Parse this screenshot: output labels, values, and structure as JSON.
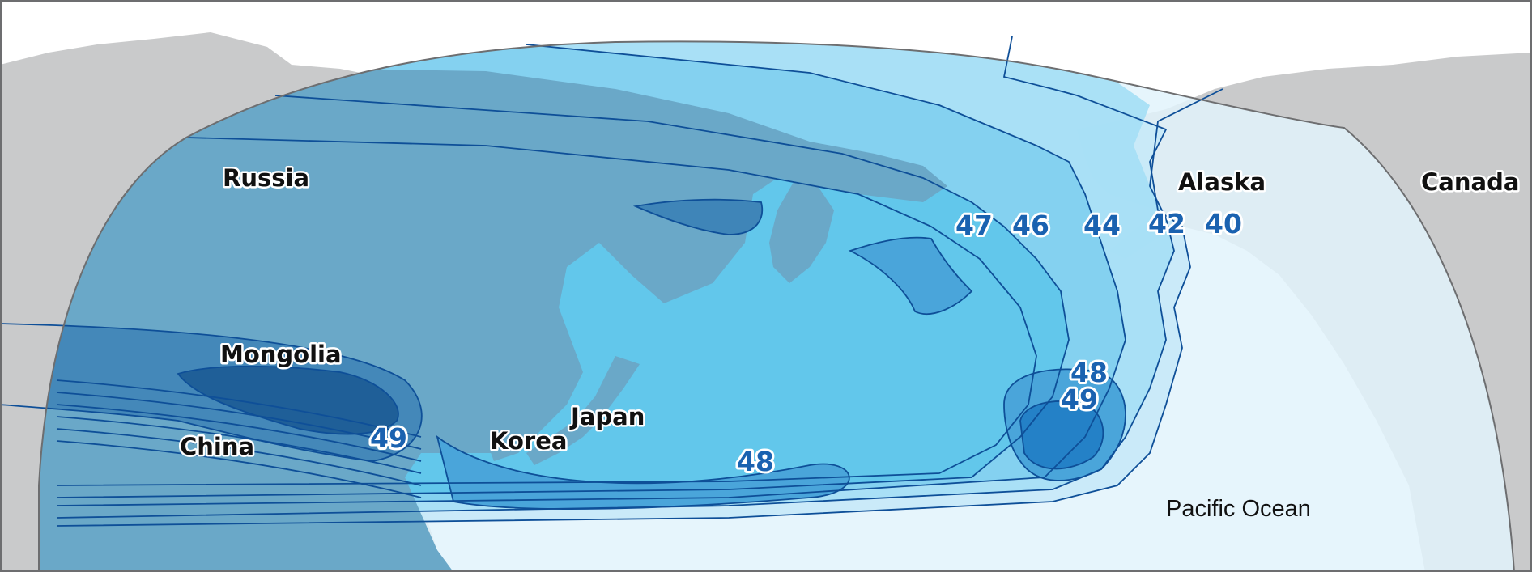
{
  "labels": {
    "russia": "Russia",
    "mongolia": "Mongolia",
    "china": "China",
    "korea": "Korea",
    "japan": "Japan",
    "alaska": "Alaska",
    "canada": "Canada",
    "pacific_ocean": "Pacific Ocean"
  },
  "contour_values": {
    "c47": "47",
    "c46": "46",
    "c44": "44",
    "c42": "42",
    "c40": "40",
    "c48_east": "48",
    "c49_east": "49",
    "c49_west": "49",
    "c48_south": "48"
  },
  "colors": {
    "land": "#c9cacb",
    "ocean": "#ffffff",
    "frame": "#6d6e70",
    "contour_line": "#0e4f98",
    "label_blue": "#1a62b0",
    "level_40": "#e2f3fb",
    "level_42": "#c6e9f8",
    "level_44": "#a7dff6",
    "level_46": "#84d1f0",
    "level_47": "#62c7eb",
    "level_48": "#4aa5da",
    "level_49": "#2481c7"
  }
}
